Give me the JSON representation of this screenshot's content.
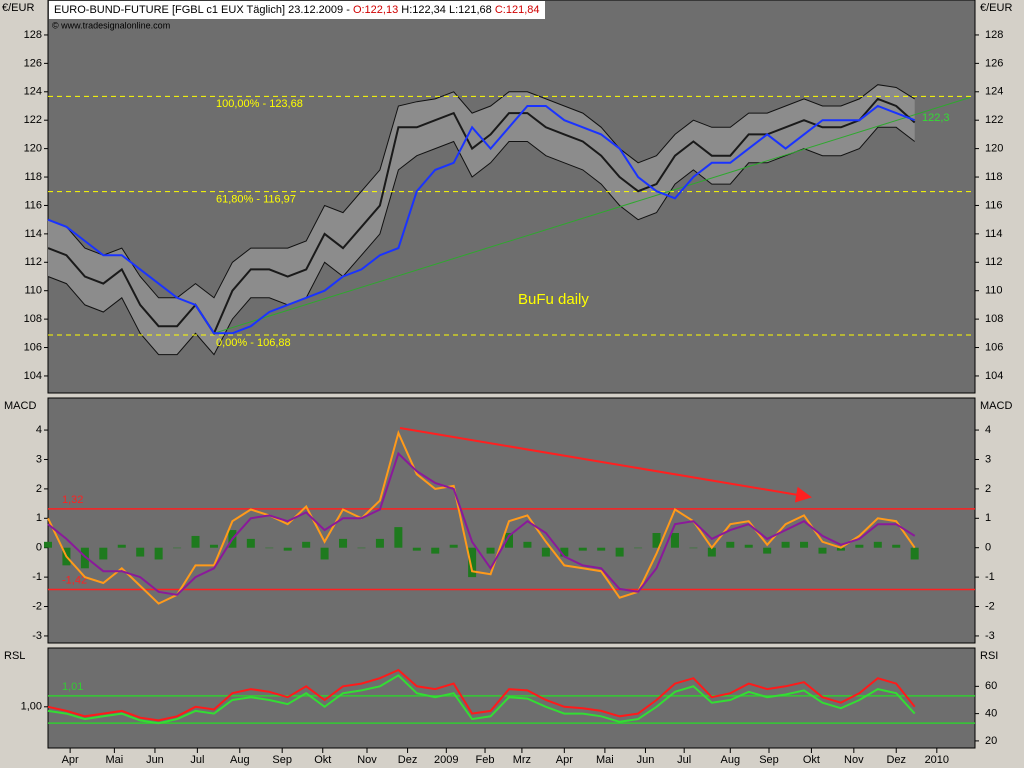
{
  "chart_data": [
    {
      "type": "line",
      "title_parts": [
        "EURO-BUND-FUTURE [FGBL c1 EUX  Täglich] 23.12.2009 - ",
        "O:122,13",
        " H:122,34 L:121,68 ",
        "C:121,84"
      ],
      "source": "© www.tradesignalonline.com",
      "axis_label": "€/EUR",
      "annotation": "BuFu daily",
      "last_label": "122,3",
      "ylim": [
        102.8,
        130.46
      ],
      "yticks": [
        104,
        106,
        108,
        110,
        112,
        114,
        116,
        118,
        120,
        122,
        124,
        126,
        128
      ],
      "levels": [
        {
          "value": 123.68,
          "label": "100,00% - 123,68"
        },
        {
          "value": 116.97,
          "label": "61,80% - 116,97"
        },
        {
          "value": 106.88,
          "label": "0,00% - 106,88"
        }
      ],
      "level_color": "#ffff00",
      "trendline": {
        "x": [
          9,
          50
        ],
        "y": [
          107,
          123.6
        ],
        "color": "#2ea82e"
      },
      "band": {
        "color": "#8c8c8c",
        "upper": [
          115,
          114.5,
          113,
          112.5,
          113,
          111,
          109.5,
          109.5,
          110.5,
          109.5,
          112,
          113,
          113,
          113,
          113.5,
          116,
          115.5,
          117,
          118.5,
          123,
          123.3,
          123.5,
          124,
          122.5,
          123,
          124,
          124,
          123.5,
          123,
          122.5,
          121.5,
          120,
          119,
          119.5,
          121,
          122,
          121.5,
          121.5,
          122.5,
          122.5,
          123,
          123.5,
          123,
          123,
          123.5,
          124.5,
          124.3,
          123.5
        ],
        "lower": [
          111,
          110.5,
          109,
          108.5,
          109.5,
          107,
          105.5,
          105.5,
          107,
          105.5,
          108,
          109.5,
          109.5,
          109,
          109.5,
          112,
          111,
          112.5,
          114,
          118.5,
          119.5,
          120,
          120.5,
          118,
          119,
          120.5,
          120.5,
          119.5,
          119,
          118.5,
          117.5,
          116,
          115,
          115.5,
          117.5,
          118.5,
          117.5,
          117.5,
          119,
          119,
          119.5,
          120,
          119.5,
          119.5,
          120,
          121.5,
          121.5,
          120.5
        ]
      },
      "series": [
        {
          "color": "#1a1a1a",
          "style": "line",
          "values": [
            113,
            112.5,
            111,
            110.5,
            111.5,
            109,
            107.5,
            107.5,
            109,
            107,
            110,
            111.5,
            111.5,
            111,
            111.5,
            114,
            113,
            114.5,
            116,
            121.5,
            121.5,
            122,
            122.5,
            120,
            121,
            122.5,
            122.5,
            121.5,
            121,
            120.5,
            119.5,
            118,
            117,
            117.5,
            119.5,
            120.5,
            119.5,
            119.5,
            121,
            121,
            121.5,
            122,
            121.5,
            121.5,
            122,
            123.5,
            123,
            121.84
          ]
        },
        {
          "color": "#1a33ff",
          "style": "line",
          "values": [
            115,
            114.5,
            113.5,
            112.5,
            112.5,
            111.5,
            110.5,
            109.5,
            109,
            107,
            107,
            107.5,
            108.5,
            109,
            109.5,
            110,
            111,
            111.5,
            112.5,
            113,
            117,
            118.5,
            119,
            121.5,
            120,
            121.5,
            123,
            123,
            122,
            121.5,
            121,
            120,
            118,
            117,
            116.5,
            118,
            119,
            119,
            120,
            121,
            120,
            121,
            122,
            122,
            122,
            123,
            122.5,
            122
          ]
        }
      ]
    },
    {
      "type": "line",
      "axis_label": "MACD",
      "ylim": [
        -3.24,
        5.09
      ],
      "yticks": [
        -3,
        -2,
        -1,
        0,
        1,
        2,
        3,
        4
      ],
      "levels": [
        {
          "value": 1.32,
          "label": "1,32"
        },
        {
          "value": -1.42,
          "label": "-1,42"
        }
      ],
      "level_color": "#ff2020",
      "series": [
        {
          "color": "#1e7a1e",
          "style": "bar",
          "values": [
            0.2,
            -0.6,
            -0.7,
            -0.4,
            0.1,
            -0.3,
            -0.4,
            0.0,
            0.4,
            0.1,
            0.6,
            0.3,
            0.0,
            -0.1,
            0.2,
            -0.4,
            0.3,
            0.0,
            0.3,
            0.7,
            -0.1,
            -0.2,
            0.1,
            -1.0,
            -0.2,
            0.5,
            0.2,
            -0.3,
            -0.3,
            -0.1,
            -0.1,
            -0.3,
            0.0,
            0.5,
            0.5,
            0.0,
            -0.3,
            0.2,
            0.1,
            -0.2,
            0.2,
            0.2,
            -0.2,
            -0.1,
            0.1,
            0.2,
            0.1,
            -0.4
          ]
        },
        {
          "color": "#ff9a1a",
          "style": "line",
          "values": [
            1.0,
            -0.3,
            -1.0,
            -1.2,
            -0.7,
            -1.3,
            -1.9,
            -1.6,
            -0.6,
            -0.6,
            0.9,
            1.3,
            1.1,
            0.8,
            1.4,
            0.2,
            1.3,
            1.0,
            1.6,
            3.9,
            2.5,
            2.0,
            2.1,
            -0.8,
            -0.9,
            0.9,
            1.1,
            0.2,
            -0.6,
            -0.7,
            -0.8,
            -1.7,
            -1.5,
            -0.2,
            1.3,
            0.9,
            0.0,
            0.8,
            0.9,
            0.1,
            0.8,
            1.1,
            0.2,
            0.0,
            0.4,
            1.0,
            0.9,
            0.0
          ]
        },
        {
          "color": "#8a1a9a",
          "style": "line",
          "values": [
            0.8,
            0.3,
            -0.3,
            -0.8,
            -0.8,
            -1.0,
            -1.5,
            -1.6,
            -1.0,
            -0.7,
            0.3,
            1.0,
            1.1,
            0.9,
            1.2,
            0.6,
            1.0,
            1.0,
            1.3,
            3.2,
            2.6,
            2.2,
            2.0,
            0.2,
            -0.7,
            0.4,
            0.9,
            0.5,
            -0.3,
            -0.6,
            -0.7,
            -1.4,
            -1.5,
            -0.7,
            0.8,
            0.9,
            0.3,
            0.6,
            0.8,
            0.3,
            0.6,
            0.9,
            0.4,
            0.1,
            0.3,
            0.8,
            0.8,
            0.4
          ]
        }
      ]
    },
    {
      "type": "line",
      "axis_label": "RSL",
      "axis_label_right": "RSI",
      "ylim": [
        14.8,
        88.1
      ],
      "yticks": [
        {
          "value": 45,
          "label": "1,00"
        }
      ],
      "y2ticks": [
        20,
        40,
        60
      ],
      "levels": [
        {
          "value": 53,
          "label": "1,01"
        },
        33
      ],
      "level_color": "#33cc33",
      "xlim": [
        0,
        50
      ],
      "xticks": [
        {
          "value": 1.2,
          "label": "Apr"
        },
        {
          "value": 3.6,
          "label": "Mai"
        },
        {
          "value": 5.8,
          "label": "Jun"
        },
        {
          "value": 8.1,
          "label": "Jul"
        },
        {
          "value": 10.4,
          "label": "Aug"
        },
        {
          "value": 12.7,
          "label": "Sep"
        },
        {
          "value": 14.9,
          "label": "Okt"
        },
        {
          "value": 17.3,
          "label": "Nov"
        },
        {
          "value": 19.5,
          "label": "Dez"
        },
        {
          "value": 21.6,
          "label": "2009"
        },
        {
          "value": 23.7,
          "label": "Feb"
        },
        {
          "value": 25.7,
          "label": "Mrz"
        },
        {
          "value": 28.0,
          "label": "Apr"
        },
        {
          "value": 30.2,
          "label": "Mai"
        },
        {
          "value": 32.4,
          "label": "Jun"
        },
        {
          "value": 34.5,
          "label": "Jul"
        },
        {
          "value": 37.0,
          "label": "Aug"
        },
        {
          "value": 39.1,
          "label": "Sep"
        },
        {
          "value": 41.4,
          "label": "Okt"
        },
        {
          "value": 43.7,
          "label": "Nov"
        },
        {
          "value": 46.0,
          "label": "Dez"
        },
        {
          "value": 48.2,
          "label": "2010"
        }
      ],
      "series": [
        {
          "color": "#ff1a1a",
          "style": "line",
          "values": [
            45,
            42,
            38,
            40,
            42,
            37,
            35,
            38,
            45,
            43,
            55,
            58,
            56,
            52,
            60,
            50,
            60,
            62,
            66,
            72,
            60,
            58,
            62,
            40,
            42,
            58,
            57,
            50,
            45,
            44,
            42,
            38,
            40,
            50,
            62,
            66,
            52,
            55,
            62,
            58,
            60,
            63,
            52,
            48,
            55,
            66,
            62,
            45
          ]
        },
        {
          "color": "#33dd33",
          "style": "line",
          "values": [
            42,
            40,
            36,
            38,
            40,
            35,
            33,
            36,
            42,
            40,
            50,
            52,
            50,
            47,
            55,
            45,
            55,
            57,
            60,
            68,
            55,
            52,
            55,
            36,
            38,
            52,
            51,
            45,
            40,
            40,
            38,
            34,
            36,
            45,
            56,
            60,
            48,
            50,
            56,
            52,
            54,
            57,
            48,
            44,
            50,
            58,
            55,
            40
          ]
        }
      ]
    }
  ]
}
